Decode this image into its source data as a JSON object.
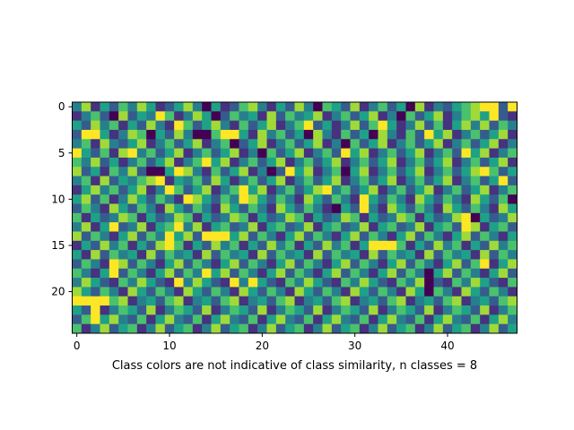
{
  "chart_data": {
    "type": "heatmap",
    "title": "",
    "xlabel": "Class colors are not indicative of class similarity, n classes = 8",
    "ylabel": "",
    "n_rows": 25,
    "n_cols": 48,
    "n_classes": 8,
    "value_range": [
      0,
      7
    ],
    "colormap": [
      "#440154",
      "#46327e",
      "#365c8d",
      "#277f8e",
      "#1fa187",
      "#4ac16d",
      "#a0da39",
      "#fde725"
    ],
    "x_ticks": [
      0,
      10,
      20,
      30,
      40
    ],
    "y_ticks": [
      0,
      5,
      10,
      15,
      20
    ],
    "x_tick_labels": [
      "0",
      "10",
      "20",
      "30",
      "40"
    ],
    "y_tick_labels": [
      "0",
      "5",
      "10",
      "15",
      "20"
    ],
    "xlim": [
      -0.5,
      47.5
    ],
    "ylim": [
      24.5,
      -0.5
    ],
    "values": [
      [
        3,
        6,
        1,
        4,
        2,
        5,
        3,
        6,
        4,
        1,
        2,
        4,
        6,
        3,
        0,
        4,
        1,
        2,
        5,
        6,
        3,
        1,
        4,
        2,
        6,
        3,
        0,
        5,
        4,
        2,
        6,
        1,
        3,
        5,
        2,
        4,
        0,
        6,
        1,
        3,
        2,
        4,
        5,
        6,
        7,
        7,
        2,
        7
      ],
      [
        1,
        3,
        5,
        2,
        0,
        6,
        2,
        4,
        3,
        7,
        5,
        1,
        3,
        6,
        4,
        0,
        2,
        5,
        3,
        4,
        1,
        6,
        2,
        5,
        3,
        4,
        6,
        1,
        3,
        5,
        2,
        4,
        6,
        1,
        3,
        0,
        5,
        2,
        4,
        6,
        1,
        3,
        5,
        6,
        4,
        7,
        2,
        1
      ],
      [
        4,
        2,
        6,
        3,
        5,
        1,
        4,
        2,
        6,
        3,
        1,
        7,
        5,
        2,
        4,
        6,
        3,
        1,
        5,
        2,
        4,
        6,
        1,
        3,
        5,
        7,
        2,
        4,
        1,
        3,
        6,
        2,
        5,
        7,
        4,
        1,
        3,
        6,
        2,
        5,
        1,
        4,
        6,
        3,
        6,
        2,
        5,
        3
      ],
      [
        2,
        7,
        7,
        4,
        1,
        3,
        6,
        5,
        0,
        4,
        2,
        6,
        3,
        0,
        0,
        5,
        7,
        7,
        4,
        1,
        6,
        3,
        5,
        2,
        4,
        0,
        6,
        3,
        1,
        5,
        2,
        4,
        0,
        6,
        3,
        1,
        5,
        2,
        7,
        4,
        6,
        1,
        3,
        5,
        2,
        4,
        6,
        1
      ],
      [
        3,
        5,
        1,
        6,
        3,
        2,
        4,
        6,
        1,
        3,
        5,
        2,
        4,
        6,
        1,
        3,
        5,
        0,
        2,
        4,
        6,
        1,
        3,
        5,
        2,
        4,
        6,
        1,
        3,
        0,
        5,
        2,
        4,
        6,
        1,
        3,
        5,
        2,
        4,
        6,
        1,
        3,
        5,
        2,
        4,
        6,
        1,
        3
      ],
      [
        7,
        4,
        2,
        5,
        1,
        6,
        7,
        3,
        5,
        2,
        4,
        6,
        1,
        3,
        5,
        2,
        4,
        6,
        1,
        3,
        0,
        5,
        2,
        4,
        6,
        1,
        3,
        5,
        2,
        7,
        4,
        6,
        1,
        3,
        5,
        2,
        4,
        6,
        1,
        3,
        5,
        2,
        7,
        4,
        6,
        1,
        3,
        5
      ],
      [
        5,
        3,
        6,
        2,
        4,
        1,
        3,
        5,
        2,
        4,
        6,
        1,
        3,
        5,
        7,
        4,
        6,
        1,
        3,
        5,
        2,
        4,
        6,
        1,
        3,
        5,
        2,
        4,
        6,
        1,
        3,
        5,
        2,
        4,
        6,
        1,
        3,
        5,
        2,
        4,
        6,
        1,
        3,
        5,
        2,
        4,
        6,
        1
      ],
      [
        6,
        2,
        4,
        1,
        5,
        3,
        6,
        2,
        0,
        0,
        4,
        7,
        6,
        3,
        1,
        5,
        2,
        4,
        6,
        1,
        3,
        0,
        2,
        7,
        4,
        6,
        1,
        3,
        5,
        0,
        4,
        6,
        1,
        3,
        5,
        2,
        4,
        6,
        1,
        3,
        5,
        2,
        4,
        6,
        7,
        5,
        2,
        4
      ],
      [
        3,
        5,
        1,
        6,
        2,
        4,
        3,
        5,
        6,
        7,
        1,
        4,
        3,
        5,
        2,
        6,
        4,
        1,
        3,
        5,
        2,
        4,
        6,
        1,
        3,
        5,
        2,
        4,
        6,
        1,
        3,
        5,
        2,
        4,
        6,
        1,
        3,
        5,
        2,
        4,
        6,
        1,
        3,
        5,
        2,
        4,
        7,
        2
      ],
      [
        1,
        4,
        6,
        3,
        5,
        2,
        4,
        6,
        1,
        3,
        7,
        5,
        2,
        4,
        6,
        1,
        3,
        5,
        7,
        4,
        6,
        1,
        3,
        5,
        2,
        4,
        6,
        7,
        3,
        5,
        2,
        4,
        6,
        1,
        3,
        5,
        2,
        4,
        6,
        1,
        3,
        5,
        2,
        4,
        6,
        1,
        3,
        5
      ],
      [
        4,
        6,
        2,
        5,
        1,
        3,
        6,
        4,
        2,
        5,
        3,
        1,
        7,
        6,
        4,
        2,
        5,
        3,
        7,
        6,
        4,
        2,
        5,
        3,
        1,
        6,
        4,
        2,
        5,
        3,
        1,
        7,
        4,
        2,
        5,
        3,
        1,
        6,
        4,
        2,
        5,
        3,
        1,
        6,
        4,
        2,
        5,
        0
      ],
      [
        2,
        5,
        3,
        1,
        6,
        4,
        2,
        5,
        3,
        1,
        6,
        4,
        2,
        5,
        3,
        1,
        6,
        4,
        2,
        5,
        3,
        1,
        6,
        4,
        2,
        5,
        3,
        1,
        0,
        4,
        2,
        7,
        3,
        1,
        6,
        4,
        2,
        5,
        3,
        1,
        6,
        4,
        2,
        5,
        3,
        1,
        6,
        4
      ],
      [
        5,
        1,
        4,
        2,
        3,
        6,
        5,
        1,
        4,
        2,
        3,
        6,
        5,
        1,
        4,
        2,
        3,
        6,
        5,
        1,
        4,
        2,
        3,
        6,
        5,
        1,
        4,
        2,
        3,
        6,
        5,
        1,
        4,
        2,
        3,
        6,
        5,
        1,
        4,
        2,
        3,
        6,
        7,
        0,
        4,
        2,
        3,
        6
      ],
      [
        3,
        6,
        1,
        4,
        7,
        2,
        3,
        6,
        1,
        4,
        5,
        7,
        3,
        6,
        1,
        4,
        5,
        2,
        3,
        6,
        1,
        4,
        5,
        2,
        3,
        6,
        1,
        4,
        5,
        2,
        3,
        6,
        1,
        4,
        5,
        2,
        3,
        6,
        1,
        4,
        5,
        2,
        7,
        6,
        1,
        4,
        5,
        2
      ],
      [
        6,
        2,
        5,
        3,
        1,
        4,
        6,
        2,
        5,
        3,
        7,
        4,
        6,
        2,
        7,
        7,
        7,
        4,
        6,
        2,
        5,
        3,
        1,
        4,
        6,
        2,
        5,
        3,
        1,
        4,
        6,
        2,
        5,
        3,
        1,
        4,
        6,
        2,
        5,
        3,
        1,
        4,
        6,
        2,
        5,
        3,
        1,
        4
      ],
      [
        1,
        4,
        2,
        6,
        3,
        5,
        1,
        4,
        2,
        6,
        7,
        5,
        1,
        4,
        2,
        6,
        3,
        5,
        1,
        4,
        2,
        6,
        3,
        5,
        1,
        4,
        2,
        6,
        3,
        5,
        1,
        4,
        7,
        7,
        7,
        5,
        1,
        4,
        2,
        6,
        3,
        5,
        1,
        4,
        2,
        6,
        3,
        5
      ],
      [
        4,
        1,
        6,
        2,
        5,
        3,
        4,
        1,
        6,
        2,
        5,
        3,
        4,
        1,
        6,
        2,
        5,
        3,
        4,
        1,
        6,
        2,
        5,
        3,
        4,
        1,
        6,
        2,
        5,
        3,
        4,
        1,
        6,
        2,
        5,
        3,
        4,
        1,
        6,
        2,
        5,
        3,
        4,
        1,
        6,
        2,
        5,
        3
      ],
      [
        2,
        5,
        3,
        1,
        7,
        6,
        2,
        5,
        3,
        1,
        4,
        6,
        2,
        5,
        3,
        1,
        4,
        6,
        2,
        5,
        3,
        1,
        4,
        6,
        2,
        5,
        3,
        1,
        4,
        6,
        2,
        5,
        3,
        1,
        4,
        6,
        2,
        5,
        3,
        1,
        4,
        6,
        2,
        5,
        7,
        1,
        4,
        6
      ],
      [
        5,
        3,
        1,
        4,
        7,
        2,
        5,
        3,
        1,
        4,
        6,
        2,
        5,
        3,
        7,
        4,
        6,
        2,
        5,
        3,
        1,
        4,
        6,
        2,
        5,
        3,
        1,
        4,
        6,
        2,
        5,
        3,
        1,
        4,
        6,
        2,
        5,
        3,
        0,
        4,
        6,
        2,
        5,
        3,
        1,
        4,
        6,
        2
      ],
      [
        3,
        6,
        4,
        2,
        1,
        5,
        3,
        6,
        4,
        2,
        1,
        7,
        3,
        6,
        4,
        2,
        1,
        7,
        3,
        7,
        4,
        2,
        1,
        5,
        3,
        6,
        4,
        2,
        1,
        5,
        3,
        6,
        4,
        2,
        1,
        5,
        3,
        6,
        0,
        2,
        1,
        5,
        3,
        6,
        4,
        2,
        1,
        5
      ],
      [
        6,
        4,
        2,
        5,
        3,
        1,
        6,
        4,
        2,
        5,
        3,
        1,
        6,
        4,
        2,
        5,
        3,
        1,
        6,
        4,
        2,
        5,
        3,
        1,
        6,
        4,
        2,
        5,
        3,
        1,
        6,
        4,
        2,
        5,
        3,
        1,
        6,
        4,
        0,
        5,
        3,
        1,
        6,
        4,
        2,
        5,
        3,
        1
      ],
      [
        7,
        7,
        7,
        7,
        5,
        6,
        1,
        3,
        4,
        2,
        5,
        6,
        1,
        3,
        4,
        2,
        5,
        6,
        1,
        3,
        4,
        2,
        5,
        6,
        1,
        3,
        4,
        2,
        5,
        6,
        1,
        3,
        4,
        2,
        5,
        6,
        1,
        3,
        4,
        2,
        5,
        6,
        1,
        3,
        4,
        2,
        5,
        6
      ],
      [
        4,
        2,
        7,
        1,
        3,
        5,
        4,
        2,
        6,
        1,
        3,
        5,
        4,
        2,
        6,
        1,
        3,
        5,
        4,
        2,
        6,
        1,
        3,
        5,
        4,
        2,
        6,
        1,
        3,
        5,
        4,
        2,
        6,
        1,
        3,
        5,
        4,
        2,
        6,
        1,
        3,
        5,
        4,
        2,
        6,
        1,
        3,
        5
      ],
      [
        2,
        5,
        7,
        4,
        6,
        3,
        2,
        5,
        1,
        4,
        6,
        3,
        2,
        5,
        1,
        4,
        6,
        3,
        2,
        5,
        1,
        4,
        6,
        3,
        2,
        5,
        1,
        4,
        6,
        3,
        2,
        5,
        1,
        4,
        6,
        3,
        2,
        5,
        1,
        4,
        6,
        3,
        2,
        5,
        1,
        4,
        6,
        3
      ],
      [
        5,
        1,
        3,
        6,
        2,
        4,
        5,
        1,
        3,
        6,
        2,
        4,
        5,
        1,
        3,
        6,
        2,
        4,
        5,
        1,
        3,
        6,
        2,
        4,
        5,
        1,
        3,
        6,
        2,
        4,
        5,
        1,
        3,
        6,
        2,
        4,
        5,
        1,
        3,
        6,
        2,
        4,
        5,
        1,
        3,
        6,
        2,
        4
      ]
    ]
  }
}
